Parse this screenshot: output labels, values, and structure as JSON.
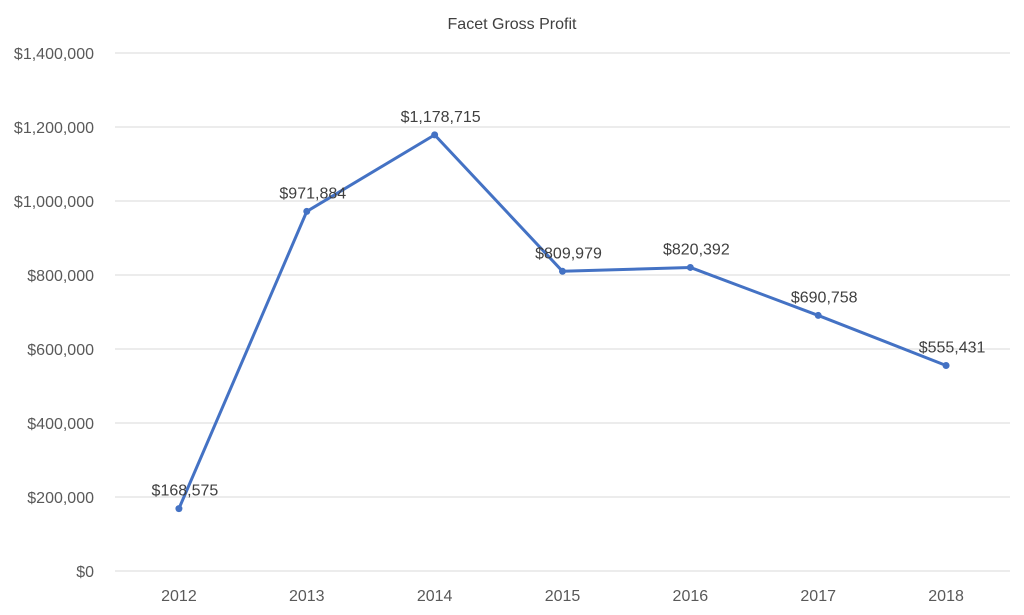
{
  "chart_data": {
    "type": "line",
    "title": "Facet Gross Profit",
    "categories": [
      "2012",
      "2013",
      "2014",
      "2015",
      "2016",
      "2017",
      "2018"
    ],
    "values": [
      168575,
      971884,
      1178715,
      809979,
      820392,
      690758,
      555431
    ],
    "data_labels": [
      "$168,575",
      "$971,884",
      "$1,178,715",
      "$809,979",
      "$820,392",
      "$690,758",
      "$555,431"
    ],
    "yticks": [
      "$0",
      "$200,000",
      "$400,000",
      "$600,000",
      "$800,000",
      "$1,000,000",
      "$1,200,000",
      "$1,400,000"
    ],
    "ylim": [
      0,
      1400000
    ],
    "grid": true,
    "legend": "none",
    "color": "#4472c4"
  }
}
